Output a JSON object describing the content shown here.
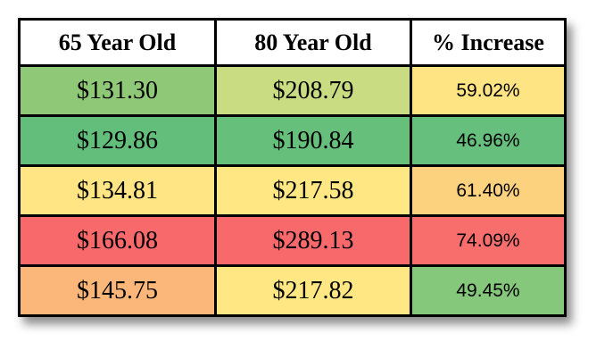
{
  "table": {
    "headers": [
      "65 Year Old",
      "80 Year Old",
      "% Increase"
    ],
    "rows": [
      [
        "$131.30",
        "$208.79",
        "59.02%"
      ],
      [
        "$129.86",
        "$190.84",
        "46.96%"
      ],
      [
        "$134.81",
        "$217.58",
        "61.40%"
      ],
      [
        "$166.08",
        "$289.13",
        "74.09%"
      ],
      [
        "$145.75",
        "$217.82",
        "49.45%"
      ]
    ],
    "colors": [
      [
        "#8fc977",
        "#c9dc82",
        "#ffe484"
      ],
      [
        "#63be7b",
        "#66bf7b",
        "#66bf7c"
      ],
      [
        "#ffe584",
        "#ffe784",
        "#fdd27f"
      ],
      [
        "#f8696b",
        "#f8696b",
        "#f86e6c"
      ],
      [
        "#fbb779",
        "#ffe884",
        "#85c87c"
      ]
    ]
  }
}
